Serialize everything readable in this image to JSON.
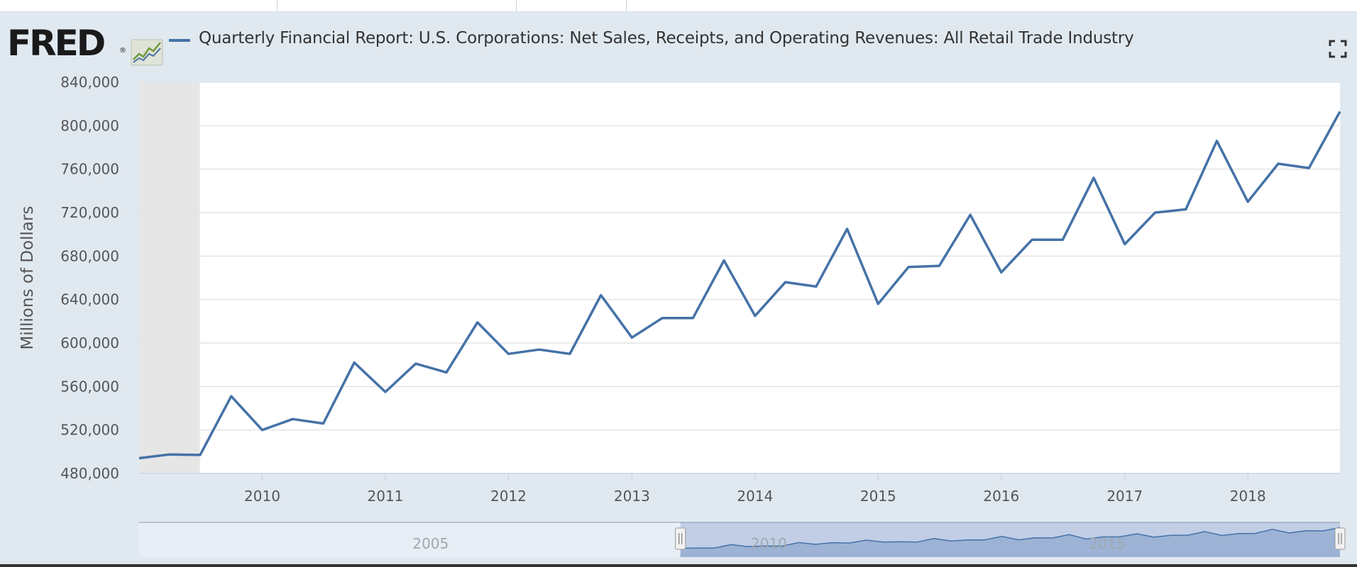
{
  "header": {
    "logo_text": "FRED",
    "logo_reg": "®",
    "title": "Quarterly Financial Report: U.S. Corporations: Net Sales, Receipts, and Operating Revenues: All Retail Trade Industry"
  },
  "colors": {
    "series": "#4572a7",
    "plot_background": "#ffffff",
    "page_background": "#e1e9f0",
    "gridline": "#e4e4e4",
    "shaded_region": "#e6e6e6",
    "navigator_fill": "#8fa9cf"
  },
  "icons": {
    "logo_graph": "trend-graph-icon",
    "fullscreen": "fullscreen-icon"
  },
  "chart_data": {
    "type": "line",
    "title": "Quarterly Financial Report: U.S. Corporations: Net Sales, Receipts, and Operating Revenues: All Retail Trade Industry",
    "xlabel": "",
    "ylabel": "Millions of Dollars",
    "x_tick_labels": [
      "2010",
      "2011",
      "2012",
      "2013",
      "2014",
      "2015",
      "2016",
      "2017",
      "2018"
    ],
    "y_tick_labels": [
      "480,000",
      "520,000",
      "560,000",
      "600,000",
      "640,000",
      "680,000",
      "720,000",
      "760,000",
      "800,000",
      "840,000"
    ],
    "ylim": [
      480000,
      840000
    ],
    "xlim": [
      "2009-01-01",
      "2018-10-01"
    ],
    "grid": true,
    "recession_shading": [
      "2009-01-01",
      "2009-06-30"
    ],
    "series": [
      {
        "x": [
          "2009-01-01",
          "2009-04-01",
          "2009-07-01",
          "2009-10-01",
          "2010-01-01",
          "2010-04-01",
          "2010-07-01",
          "2010-10-01",
          "2011-01-01",
          "2011-04-01",
          "2011-07-01",
          "2011-10-01",
          "2012-01-01",
          "2012-04-01",
          "2012-07-01",
          "2012-10-01",
          "2013-01-01",
          "2013-04-01",
          "2013-07-01",
          "2013-10-01",
          "2014-01-01",
          "2014-04-01",
          "2014-07-01",
          "2014-10-01",
          "2015-01-01",
          "2015-04-01",
          "2015-07-01",
          "2015-10-01",
          "2016-01-01",
          "2016-04-01",
          "2016-07-01",
          "2016-10-01",
          "2017-01-01",
          "2017-04-01",
          "2017-07-01",
          "2017-10-01",
          "2018-01-01",
          "2018-04-01",
          "2018-07-01",
          "2018-10-01"
        ],
        "values": [
          494000,
          497500,
          497000,
          551000,
          520000,
          530000,
          526000,
          582000,
          555000,
          581000,
          573000,
          619000,
          590000,
          594000,
          590000,
          644000,
          605000,
          623000,
          623000,
          676000,
          625000,
          656000,
          652000,
          705000,
          636000,
          670000,
          671000,
          718000,
          665000,
          695000,
          695000,
          752000,
          691000,
          720000,
          723000,
          786000,
          730000,
          765000,
          761000,
          813000
        ]
      }
    ],
    "navigator": {
      "x_tick_labels": [
        "2005",
        "2010",
        "2015"
      ],
      "range_start": "2009-01-01",
      "range_end": "2018-10-01"
    }
  }
}
